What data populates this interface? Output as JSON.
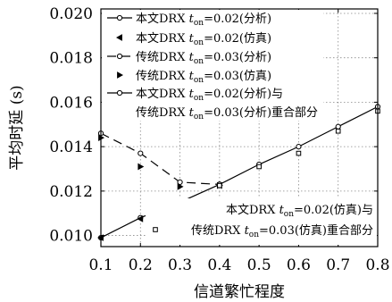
{
  "chart_data": {
    "type": "line",
    "xlabel": "信道繁忙程度",
    "ylabel": "平均时延 (s)",
    "xlim": [
      0.1,
      0.8
    ],
    "ylim": [
      0.0095,
      0.0202
    ],
    "grid": true,
    "legend_placement": "top-left",
    "x_ticks": [
      "0.1",
      "0.2",
      "0.3",
      "0.4",
      "0.5",
      "0.6",
      "0.7",
      "0.8"
    ],
    "y_ticks": [
      "0.010",
      "0.012",
      "0.014",
      "0.016",
      "0.018",
      "0.020"
    ],
    "y_tick_values": [
      0.01,
      0.012,
      0.014,
      0.016,
      0.018,
      0.02
    ],
    "series": [
      {
        "key": "a",
        "name": "本文DRX t_on=0.02(分析)",
        "x": [
          0.1,
          0.2,
          0.3,
          0.4
        ],
        "y": [
          0.0099,
          0.0108,
          0.0115,
          0.0123
        ],
        "style": "solid",
        "marker": "circle"
      },
      {
        "key": "b",
        "name": "本文DRX t_on=0.02(仿真)",
        "x": [
          0.1,
          0.2,
          0.3,
          0.4
        ],
        "y": [
          0.0099,
          0.01075,
          0.01145,
          0.01225
        ],
        "style": "none",
        "marker": "triangle-left"
      },
      {
        "key": "c",
        "name": "传统DRX t_on=0.03(分析)",
        "x": [
          0.1,
          0.2,
          0.3,
          0.4
        ],
        "y": [
          0.0146,
          0.0137,
          0.0124,
          0.0123
        ],
        "style": "dashed",
        "marker": "circle"
      },
      {
        "key": "d",
        "name": "传统DRX t_on=0.03(仿真)",
        "x": [
          0.1,
          0.2,
          0.3,
          0.4
        ],
        "y": [
          0.0144,
          0.0131,
          0.0122,
          0.01225
        ],
        "style": "none",
        "marker": "triangle-right"
      },
      {
        "key": "e",
        "name": "本文DRX t_on=0.02(分析)与 传统DRX t_on=0.03(分析)重合部分",
        "x": [
          0.4,
          0.5,
          0.6,
          0.7,
          0.8
        ],
        "y": [
          0.0123,
          0.0132,
          0.014,
          0.0149,
          0.0158
        ],
        "style": "solid",
        "marker": "circle"
      },
      {
        "key": "f",
        "name": "本文DRX t_on=0.02(仿真)与 传统DRX t_on=0.03(仿真)重合部分",
        "x": [
          0.4,
          0.5,
          0.6,
          0.7,
          0.8
        ],
        "y": [
          0.01225,
          0.0131,
          0.0137,
          0.0147,
          0.0156
        ],
        "style": "none",
        "marker": "square"
      }
    ],
    "legend": {
      "top": [
        {
          "pre": "本文DRX ",
          "t": "t",
          "sub": "on",
          "post": "=0.02(分析)",
          "key": "a"
        },
        {
          "pre": "本文DRX ",
          "t": "t",
          "sub": "on",
          "post": "=0.02(仿真)",
          "key": "b"
        },
        {
          "pre": "传统DRX ",
          "t": "t",
          "sub": "on",
          "post": "=0.03(分析)",
          "key": "c"
        },
        {
          "pre": "传统DRX ",
          "t": "t",
          "sub": "on",
          "post": "=0.03(仿真)",
          "key": "d"
        },
        {
          "pre": "本文DRX ",
          "t": "t",
          "sub": "on",
          "post": "=0.02(分析)与",
          "key": "e"
        },
        {
          "pre": "传统DRX ",
          "t": "t",
          "sub": "on",
          "post": "=0.03(分析)重合部分",
          "key": ""
        }
      ],
      "bottom": [
        {
          "pre": "本文DRX ",
          "t": "t",
          "sub": "on",
          "post": "=0.02(仿真)与",
          "key": ""
        },
        {
          "pre": "传统DRX ",
          "t": "t",
          "sub": "on",
          "post": "=0.03(仿真)重合部分",
          "key": "f"
        }
      ]
    }
  }
}
